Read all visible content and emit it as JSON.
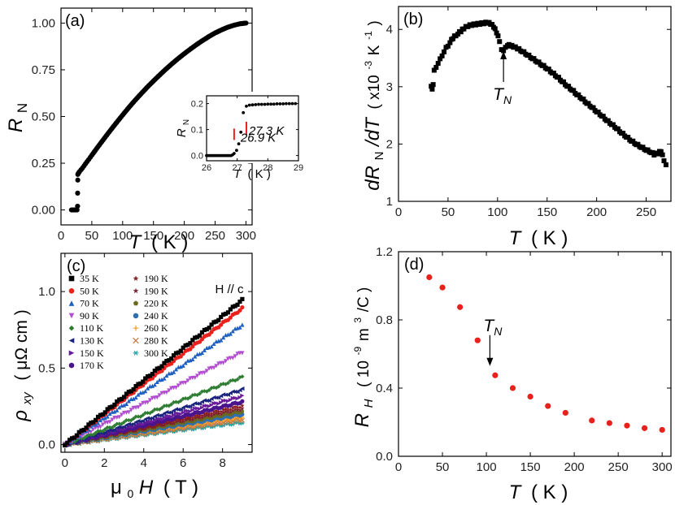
{
  "chart_data": [
    {
      "id": "a",
      "type": "scatter",
      "panel_label": "(a)",
      "xlabel_var": "T",
      "xlabel_unit": "( K )",
      "ylabel_var": "R",
      "ylabel_sub": "N",
      "xlim": [
        0,
        310
      ],
      "ylim": [
        -0.08,
        1.08
      ],
      "xticks": [
        0,
        50,
        100,
        150,
        200,
        250,
        300
      ],
      "yticks": [
        "0.00",
        "0.25",
        "0.50",
        "0.75",
        "1.00"
      ],
      "series": [
        {
          "color": "#000000",
          "points": [
            [
              17,
              0
            ],
            [
              18,
              0
            ],
            [
              19,
              0
            ],
            [
              20,
              0
            ],
            [
              21,
              0
            ],
            [
              22,
              0
            ],
            [
              23,
              0
            ],
            [
              24,
              0
            ],
            [
              25,
              0
            ],
            [
              26,
              0
            ],
            [
              26.9,
              0.02
            ],
            [
              27,
              0.09
            ],
            [
              27.2,
              0.16
            ],
            [
              27.3,
              0.19
            ],
            [
              28,
              0.195
            ],
            [
              29,
              0.2
            ],
            [
              30,
              0.205
            ],
            [
              35,
              0.225
            ],
            [
              40,
              0.248
            ],
            [
              45,
              0.27
            ],
            [
              50,
              0.293
            ],
            [
              60,
              0.338
            ],
            [
              70,
              0.382
            ],
            [
              80,
              0.425
            ],
            [
              90,
              0.467
            ],
            [
              100,
              0.508
            ],
            [
              110,
              0.548
            ],
            [
              120,
              0.586
            ],
            [
              130,
              0.622
            ],
            [
              140,
              0.657
            ],
            [
              150,
              0.69
            ],
            [
              160,
              0.722
            ],
            [
              170,
              0.753
            ],
            [
              180,
              0.782
            ],
            [
              190,
              0.81
            ],
            [
              200,
              0.836
            ],
            [
              210,
              0.861
            ],
            [
              220,
              0.885
            ],
            [
              230,
              0.907
            ],
            [
              240,
              0.928
            ],
            [
              250,
              0.947
            ],
            [
              260,
              0.963
            ],
            [
              270,
              0.977
            ],
            [
              280,
              0.988
            ],
            [
              290,
              0.996
            ],
            [
              300,
              1.0
            ]
          ]
        }
      ],
      "inset": {
        "xlabel_var": "T",
        "xlabel_unit": "( K )",
        "ylabel_var": "R",
        "ylabel_sub": "N",
        "xlim": [
          26,
          29
        ],
        "ylim": [
          -0.02,
          0.23
        ],
        "xticks": [
          "26",
          "27",
          "28",
          "29"
        ],
        "yticks": [
          "0.0",
          "0.1",
          "0.2"
        ],
        "points": [
          [
            26.0,
            0
          ],
          [
            26.05,
            0
          ],
          [
            26.1,
            0
          ],
          [
            26.15,
            0
          ],
          [
            26.2,
            0
          ],
          [
            26.25,
            0
          ],
          [
            26.3,
            0
          ],
          [
            26.35,
            0
          ],
          [
            26.4,
            0
          ],
          [
            26.45,
            0
          ],
          [
            26.5,
            0
          ],
          [
            26.55,
            0
          ],
          [
            26.6,
            0
          ],
          [
            26.65,
            0
          ],
          [
            26.7,
            0
          ],
          [
            26.75,
            0
          ],
          [
            26.8,
            0
          ],
          [
            26.85,
            0.003
          ],
          [
            26.9,
            0.008
          ],
          [
            26.98,
            0.02
          ],
          [
            27.05,
            0.045
          ],
          [
            27.12,
            0.09
          ],
          [
            27.2,
            0.165
          ],
          [
            27.3,
            0.19
          ],
          [
            27.4,
            0.194
          ],
          [
            27.5,
            0.195
          ],
          [
            27.6,
            0.196
          ],
          [
            27.7,
            0.197
          ],
          [
            27.8,
            0.197
          ],
          [
            27.9,
            0.197
          ],
          [
            28.0,
            0.198
          ],
          [
            28.1,
            0.198
          ],
          [
            28.2,
            0.198
          ],
          [
            28.3,
            0.199
          ],
          [
            28.4,
            0.199
          ],
          [
            28.5,
            0.199
          ],
          [
            28.6,
            0.2
          ],
          [
            28.7,
            0.2
          ],
          [
            28.8,
            0.2
          ],
          [
            28.9,
            0.2
          ]
        ],
        "annotations": [
          {
            "text": "27.3 K",
            "x": 27.3,
            "y": 0.13
          },
          {
            "text": "26.9 K",
            "x": 26.9,
            "y": 0.06
          }
        ]
      }
    },
    {
      "id": "b",
      "type": "scatter",
      "panel_label": "(b)",
      "xlabel_var": "T",
      "xlabel_unit": "( K )",
      "ylabel_text": "dR",
      "ylabel_sub": "N",
      "ylabel_text2": "/dT",
      "ylabel_unit": "( x10",
      "ylabel_exp": "-3",
      "ylabel_unit2": "K",
      "ylabel_exp2": "-1",
      "ylabel_close": ")",
      "xlim": [
        0,
        275
      ],
      "ylim": [
        1,
        4.4
      ],
      "xticks": [
        0,
        50,
        100,
        150,
        200,
        250
      ],
      "yticks": [
        1,
        2,
        3,
        4
      ],
      "annotation": {
        "text": "T",
        "sub": "N",
        "x": 106,
        "y": 3.65
      },
      "series": [
        {
          "color": "#000000",
          "points": [
            [
              33,
              3.02
            ],
            [
              34,
              2.97
            ],
            [
              35,
              3.05
            ],
            [
              36,
              3.3
            ],
            [
              38,
              3.35
            ],
            [
              40,
              3.42
            ],
            [
              42,
              3.5
            ],
            [
              44,
              3.55
            ],
            [
              46,
              3.62
            ],
            [
              48,
              3.7
            ],
            [
              50,
              3.72
            ],
            [
              52,
              3.78
            ],
            [
              55,
              3.85
            ],
            [
              58,
              3.9
            ],
            [
              60,
              3.93
            ],
            [
              63,
              3.97
            ],
            [
              66,
              4.02
            ],
            [
              70,
              4.06
            ],
            [
              74,
              4.08
            ],
            [
              78,
              4.09
            ],
            [
              82,
              4.1
            ],
            [
              86,
              4.11
            ],
            [
              90,
              4.12
            ],
            [
              93,
              4.1
            ],
            [
              96,
              4.05
            ],
            [
              99,
              3.95
            ],
            [
              102,
              3.8
            ],
            [
              104,
              3.66
            ],
            [
              106,
              3.64
            ],
            [
              108,
              3.7
            ],
            [
              110,
              3.73
            ],
            [
              113,
              3.72
            ],
            [
              116,
              3.7
            ],
            [
              120,
              3.67
            ],
            [
              125,
              3.62
            ],
            [
              130,
              3.56
            ],
            [
              135,
              3.5
            ],
            [
              140,
              3.44
            ],
            [
              145,
              3.38
            ],
            [
              150,
              3.32
            ],
            [
              155,
              3.25
            ],
            [
              160,
              3.18
            ],
            [
              165,
              3.1
            ],
            [
              170,
              3.02
            ],
            [
              175,
              2.95
            ],
            [
              180,
              2.87
            ],
            [
              185,
              2.8
            ],
            [
              190,
              2.72
            ],
            [
              195,
              2.65
            ],
            [
              200,
              2.57
            ],
            [
              205,
              2.5
            ],
            [
              210,
              2.42
            ],
            [
              215,
              2.35
            ],
            [
              220,
              2.28
            ],
            [
              225,
              2.2
            ],
            [
              230,
              2.13
            ],
            [
              235,
              2.06
            ],
            [
              240,
              2.0
            ],
            [
              245,
              1.95
            ],
            [
              250,
              1.9
            ],
            [
              255,
              1.86
            ],
            [
              258,
              1.82
            ],
            [
              262,
              1.84
            ],
            [
              265,
              1.88
            ],
            [
              268,
              1.72
            ],
            [
              270,
              1.65
            ],
            [
              272,
              1.62
            ]
          ]
        }
      ]
    },
    {
      "id": "c",
      "type": "scatter",
      "panel_label": "(c)",
      "xlabel_var": "μ",
      "xlabel_sub": "0",
      "xlabel_var2": "H",
      "xlabel_unit": "( T )",
      "ylabel_var": "ρ",
      "ylabel_sub": "xy",
      "ylabel_unit": "( μΩ cm )",
      "field_label": "H // c",
      "xlim": [
        -0.2,
        9.5
      ],
      "ylim": [
        -0.05,
        1.25
      ],
      "xticks": [
        0,
        2,
        4,
        6,
        8
      ],
      "yticks": [
        "0.0",
        "0.5",
        "1.0"
      ],
      "series": [
        {
          "name": "35 K",
          "color": "#000000",
          "marker": "square",
          "slope": 0.105
        },
        {
          "name": "50 K",
          "color": "#e8211c",
          "marker": "circle",
          "slope": 0.099
        },
        {
          "name": "70 K",
          "color": "#1f5fbf",
          "marker": "triangle",
          "slope": 0.087
        },
        {
          "name": "90 K",
          "color": "#b24fcf",
          "marker": "tridown",
          "slope": 0.067
        },
        {
          "name": "110 K",
          "color": "#2e7d32",
          "marker": "diamond",
          "slope": 0.049
        },
        {
          "name": "130 K",
          "color": "#1a237e",
          "marker": "triLeft",
          "slope": 0.04
        },
        {
          "name": "150 K",
          "color": "#6a1b9a",
          "marker": "triRight",
          "slope": 0.035
        },
        {
          "name": "170 K",
          "color": "#4a148c",
          "marker": "circle",
          "slope": 0.031
        },
        {
          "name": "190 K",
          "color": "#8b1a1a",
          "marker": "star",
          "slope": 0.028
        },
        {
          "name": "190 K",
          "color": "#7b1f2e",
          "marker": "star",
          "slope": 0.026
        },
        {
          "name": "220 K",
          "color": "#6b6b1f",
          "marker": "pentagon",
          "slope": 0.024
        },
        {
          "name": "240 K",
          "color": "#2f6fb0",
          "marker": "circle",
          "slope": 0.022
        },
        {
          "name": "260 K",
          "color": "#f59a23",
          "marker": "plus",
          "slope": 0.02
        },
        {
          "name": "280 K",
          "color": "#c8773f",
          "marker": "x",
          "slope": 0.018
        },
        {
          "name": "300 K",
          "color": "#2aa3a3",
          "marker": "asterisk",
          "slope": 0.016
        }
      ]
    },
    {
      "id": "d",
      "type": "scatter",
      "panel_label": "(d)",
      "xlabel_var": "T",
      "xlabel_unit": "( K )",
      "ylabel_var": "R",
      "ylabel_sub": "H",
      "ylabel_unit": "( 10",
      "ylabel_exp": "-9",
      "ylabel_unit2": " m",
      "ylabel_exp2": "3",
      "ylabel_close": "/C )",
      "xlim": [
        0,
        310
      ],
      "ylim": [
        0,
        1.2
      ],
      "xticks": [
        0,
        50,
        100,
        150,
        200,
        250,
        300
      ],
      "yticks": [
        "0.0",
        "0.4",
        "0.8",
        "1.2"
      ],
      "annotation": {
        "text": "T",
        "sub": "N",
        "x": 104,
        "y": 0.52
      },
      "series": [
        {
          "color": "#e8211c",
          "points": [
            [
              35,
              1.05
            ],
            [
              50,
              0.99
            ],
            [
              70,
              0.875
            ],
            [
              90,
              0.68
            ],
            [
              110,
              0.475
            ],
            [
              130,
              0.4
            ],
            [
              150,
              0.35
            ],
            [
              170,
              0.295
            ],
            [
              190,
              0.255
            ],
            [
              220,
              0.21
            ],
            [
              240,
              0.195
            ],
            [
              260,
              0.18
            ],
            [
              280,
              0.165
            ],
            [
              300,
              0.155
            ]
          ]
        }
      ]
    }
  ]
}
